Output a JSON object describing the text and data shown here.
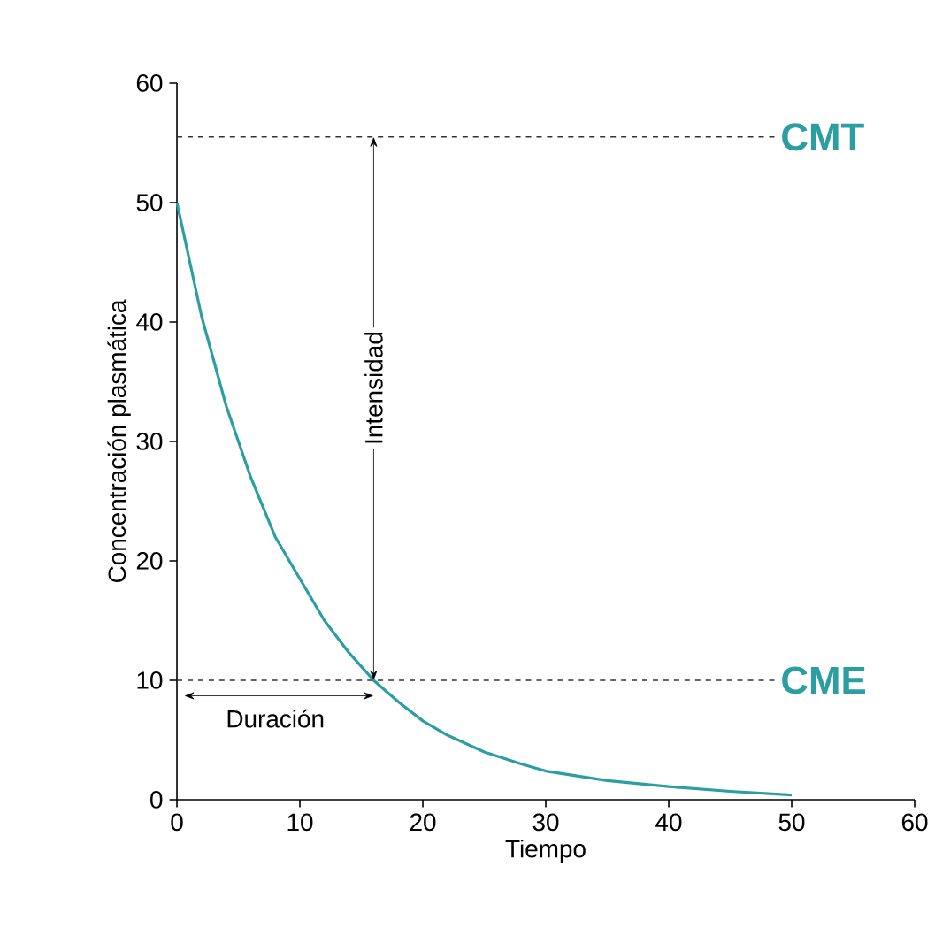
{
  "chart_data": {
    "type": "line",
    "xlabel": "Tiempo",
    "ylabel": "Concentración plasmática",
    "x": [
      0,
      2,
      4,
      6,
      8,
      10,
      12,
      14,
      16,
      18,
      20,
      22,
      25,
      28,
      30,
      35,
      40,
      45,
      50
    ],
    "series": [
      {
        "color": "#2a9ea3",
        "values": [
          50,
          40.5,
          33,
          27,
          22,
          18.5,
          15,
          12.3,
          10,
          8.2,
          6.6,
          5.4,
          4,
          3,
          2.4,
          1.6,
          1.1,
          0.7,
          0.4
        ]
      }
    ],
    "xlim": [
      0,
      60
    ],
    "ylim": [
      0,
      60
    ],
    "xticks": [
      0,
      10,
      20,
      30,
      40,
      50,
      60
    ],
    "yticks": [
      0,
      10,
      20,
      30,
      40,
      50,
      60
    ],
    "ref_lines": [
      {
        "axis": "y",
        "value": 55.5,
        "label": "CMT",
        "color": "#333333",
        "line_style": "dashed"
      },
      {
        "axis": "y",
        "value": 10,
        "label": "CME",
        "color": "#333333",
        "line_style": "dashed"
      }
    ],
    "annotations": [
      "Intensidad",
      "Duración"
    ],
    "marker": "none",
    "line_style": "solid"
  }
}
